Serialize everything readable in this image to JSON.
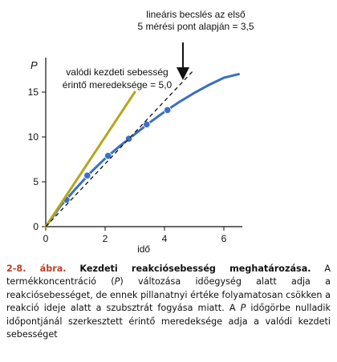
{
  "chart_data": {
    "type": "line",
    "xlabel": "idő",
    "ylabel": "P",
    "xlim": [
      0,
      7
    ],
    "ylim": [
      0,
      19
    ],
    "xticks": [
      0,
      2,
      4,
      6
    ],
    "yticks": [
      0,
      5,
      10,
      15
    ],
    "series": [
      {
        "kind": "curve",
        "color": "#3a6fc4",
        "x": [
          0,
          0.5,
          1,
          1.5,
          2,
          2.5,
          3,
          3.5,
          4,
          4.5,
          5,
          5.5,
          6,
          6.5
        ],
        "y": [
          0,
          2.3,
          4.2,
          6.0,
          7.6,
          9.0,
          10.3,
          11.6,
          12.8,
          13.9,
          14.9,
          15.8,
          16.6,
          17.0
        ]
      },
      {
        "kind": "points",
        "color": "#3a6fc4",
        "x": [
          0.7,
          1.4,
          2.1,
          2.8,
          3.4,
          4.1
        ],
        "y": [
          3.0,
          5.7,
          7.9,
          9.8,
          11.4,
          13.0
        ]
      },
      {
        "kind": "tangent",
        "color": "#b5a61a",
        "x": [
          0,
          3.0
        ],
        "y": [
          0,
          15.0
        ]
      },
      {
        "kind": "linear-estimate",
        "style": "dashed",
        "color": "#111111",
        "x": [
          0,
          5.0
        ],
        "y": [
          0,
          17.5
        ]
      }
    ],
    "annotations": [
      {
        "lines": [
          "lineáris becslés az első",
          "5 mérési pont alapján = 3,5"
        ]
      },
      {
        "lines": [
          "valódi kezdeti sebesség",
          "érintő meredeksége = 5,0"
        ]
      }
    ]
  },
  "caption": {
    "label": "2-8. ábra.",
    "title": "Kezdeti reakciósebesség meghatározása.",
    "text_1": " A termékkoncentráció (",
    "text_P1": "P",
    "text_2": ") változása időegység alatt adja a reakciósebességet, de ennek pillanatnyi értéke folyamatosan csökken a reakció ideje alatt a szubsztrát fogyása miatt. A ",
    "text_P2": "P",
    "text_3": " időgörbe nulladik időpontjánál szerkesztett érintő meredeksége adja a valódi kezdeti sebességet"
  }
}
